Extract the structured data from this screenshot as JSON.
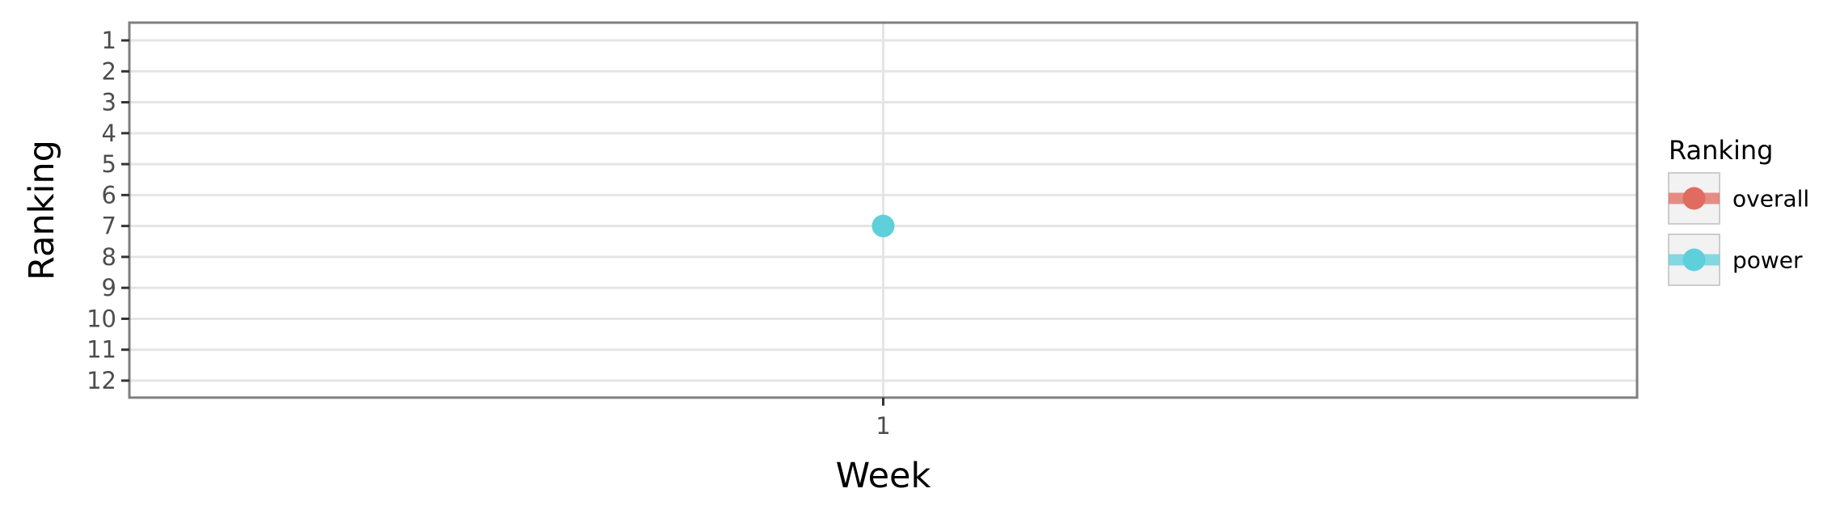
{
  "chart_data": {
    "type": "line",
    "xlabel": "Week",
    "ylabel": "Ranking",
    "x_categories": [
      "1"
    ],
    "y_ticks": [
      "1",
      "2",
      "3",
      "4",
      "5",
      "6",
      "7",
      "8",
      "9",
      "10",
      "11",
      "12"
    ],
    "ylim": [
      1,
      12
    ],
    "y_reversed": true,
    "grid": true,
    "legend": {
      "title": "Ranking",
      "placement": "right",
      "entries": [
        {
          "key": "overall",
          "label": "overall",
          "color": "#e06b5f"
        },
        {
          "key": "power",
          "label": "power",
          "color": "#5ecfdb"
        }
      ]
    },
    "series": [
      {
        "name": "overall",
        "color": "#e06b5f",
        "points": []
      },
      {
        "name": "power",
        "color": "#5ecfdb",
        "points": [
          {
            "x": "1",
            "y": 7
          }
        ]
      }
    ]
  }
}
